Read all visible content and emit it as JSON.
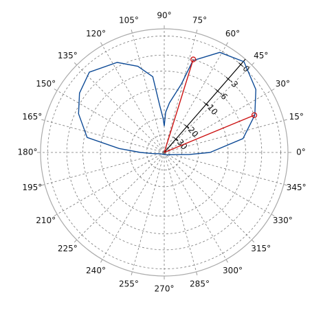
{
  "chart_data": {
    "type": "polar",
    "theta": [
      0,
      10,
      22.5,
      34.5,
      48.7,
      61,
      72.7,
      76,
      84,
      88,
      90,
      92,
      95.5,
      98.6,
      107,
      117.6,
      133,
      145,
      155.7,
      169,
      175,
      180,
      185,
      200,
      240,
      280,
      320,
      350,
      355,
      360
    ],
    "series": [
      {
        "color": "#0d4a96",
        "values": [
          -15.4,
          -6.3,
          -2.9,
          -0.8,
          0.6,
          -0.3,
          -3.2,
          -8.4,
          -14,
          -17.5,
          -24,
          -20,
          -14.9,
          -7,
          -4.3,
          -2.3,
          -1,
          -2,
          -3.6,
          -6.6,
          -15.6,
          -25.6,
          -35,
          -48,
          -52,
          -52,
          -48,
          -35,
          -25,
          -15.4
        ]
      }
    ],
    "markers": {
      "color": "#cc1111",
      "theta": [
        72.7,
        22.5
      ],
      "values": [
        -3,
        -3
      ]
    },
    "rlim": [
      -60,
      1
    ],
    "rticks": [
      0,
      -3,
      -6,
      -10,
      -20,
      -30
    ],
    "thetaticks": [
      {
        "value": 0,
        "label": "0°"
      },
      {
        "value": 15,
        "label": "15°"
      },
      {
        "value": 30,
        "label": "30°"
      },
      {
        "value": 45,
        "label": "45°"
      },
      {
        "value": 60,
        "label": "60°"
      },
      {
        "value": 75,
        "label": "75°"
      },
      {
        "value": 90,
        "label": "90°"
      },
      {
        "value": 105,
        "label": "105°"
      },
      {
        "value": 120,
        "label": "120°"
      },
      {
        "value": 135,
        "label": "135°"
      },
      {
        "value": 150,
        "label": "150°"
      },
      {
        "value": 165,
        "label": "165°"
      },
      {
        "value": 180,
        "label": "180°"
      },
      {
        "value": 195,
        "label": "195°"
      },
      {
        "value": 210,
        "label": "210°"
      },
      {
        "value": 225,
        "label": "225°"
      },
      {
        "value": 240,
        "label": "240°"
      },
      {
        "value": 255,
        "label": "255°"
      },
      {
        "value": 270,
        "label": "270°"
      },
      {
        "value": 285,
        "label": "285°"
      },
      {
        "value": 300,
        "label": "300°"
      },
      {
        "value": 315,
        "label": "315°"
      },
      {
        "value": 330,
        "label": "330°"
      },
      {
        "value": 345,
        "label": "345°"
      }
    ],
    "grid": true
  }
}
